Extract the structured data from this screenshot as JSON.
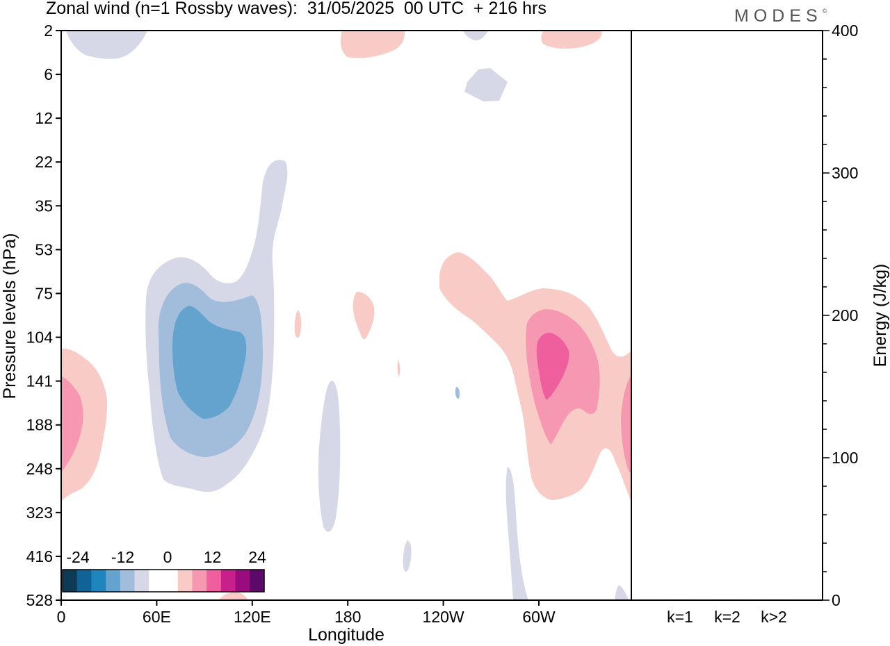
{
  "title": "Zonal wind (n=1 Rossby waves):  31/05/2025  00 UTC  + 216 hrs",
  "logo": "MODES",
  "logo_mark": "©",
  "chart_data": [
    {
      "type": "heatmap",
      "title": "Zonal wind (n=1 Rossby waves):  31/05/2025  00 UTC  + 216 hrs",
      "xlabel": "Longitude",
      "ylabel": "Pressure levels (hPa)",
      "x_ticks": [
        {
          "label": "0",
          "lon": 0
        },
        {
          "label": "60E",
          "lon": 60
        },
        {
          "label": "120E",
          "lon": 120
        },
        {
          "label": "180",
          "lon": 180
        },
        {
          "label": "120W",
          "lon": 240
        },
        {
          "label": "60W",
          "lon": 300
        }
      ],
      "xlim": [
        0,
        360
      ],
      "y_levels": [
        2,
        6,
        12,
        22,
        35,
        53,
        75,
        104,
        141,
        188,
        248,
        323,
        416,
        528
      ],
      "colorbar": {
        "labels": [
          "-24",
          "-12",
          "0",
          "12",
          "24"
        ],
        "colors": [
          "#0d3b56",
          "#0f6396",
          "#1f85be",
          "#64a3cd",
          "#a2bcdc",
          "#d6d8e8",
          "#ffffff",
          "#ffffff",
          "#f9cbc6",
          "#f698b1",
          "#ef5e9d",
          "#c8208a",
          "#9a0c7e",
          "#5c0a6a"
        ]
      },
      "features": [
        {
          "sign": "negative",
          "peak": -9,
          "lon": 85,
          "level_hPa": 130
        },
        {
          "sign": "positive",
          "peak": 10,
          "lon": 310,
          "level_hPa": 125
        },
        {
          "sign": "positive",
          "peak": 6,
          "lon": 5,
          "level_hPa": 190
        }
      ]
    },
    {
      "type": "bar",
      "categories": [
        "k=1",
        "k=2",
        "k>2"
      ],
      "values": [
        0.5,
        0.5,
        0.5
      ],
      "ylabel": "Energy (J/kg)",
      "ylim": [
        0,
        400
      ],
      "y_ticks": [
        0,
        100,
        200,
        300,
        400
      ]
    }
  ]
}
